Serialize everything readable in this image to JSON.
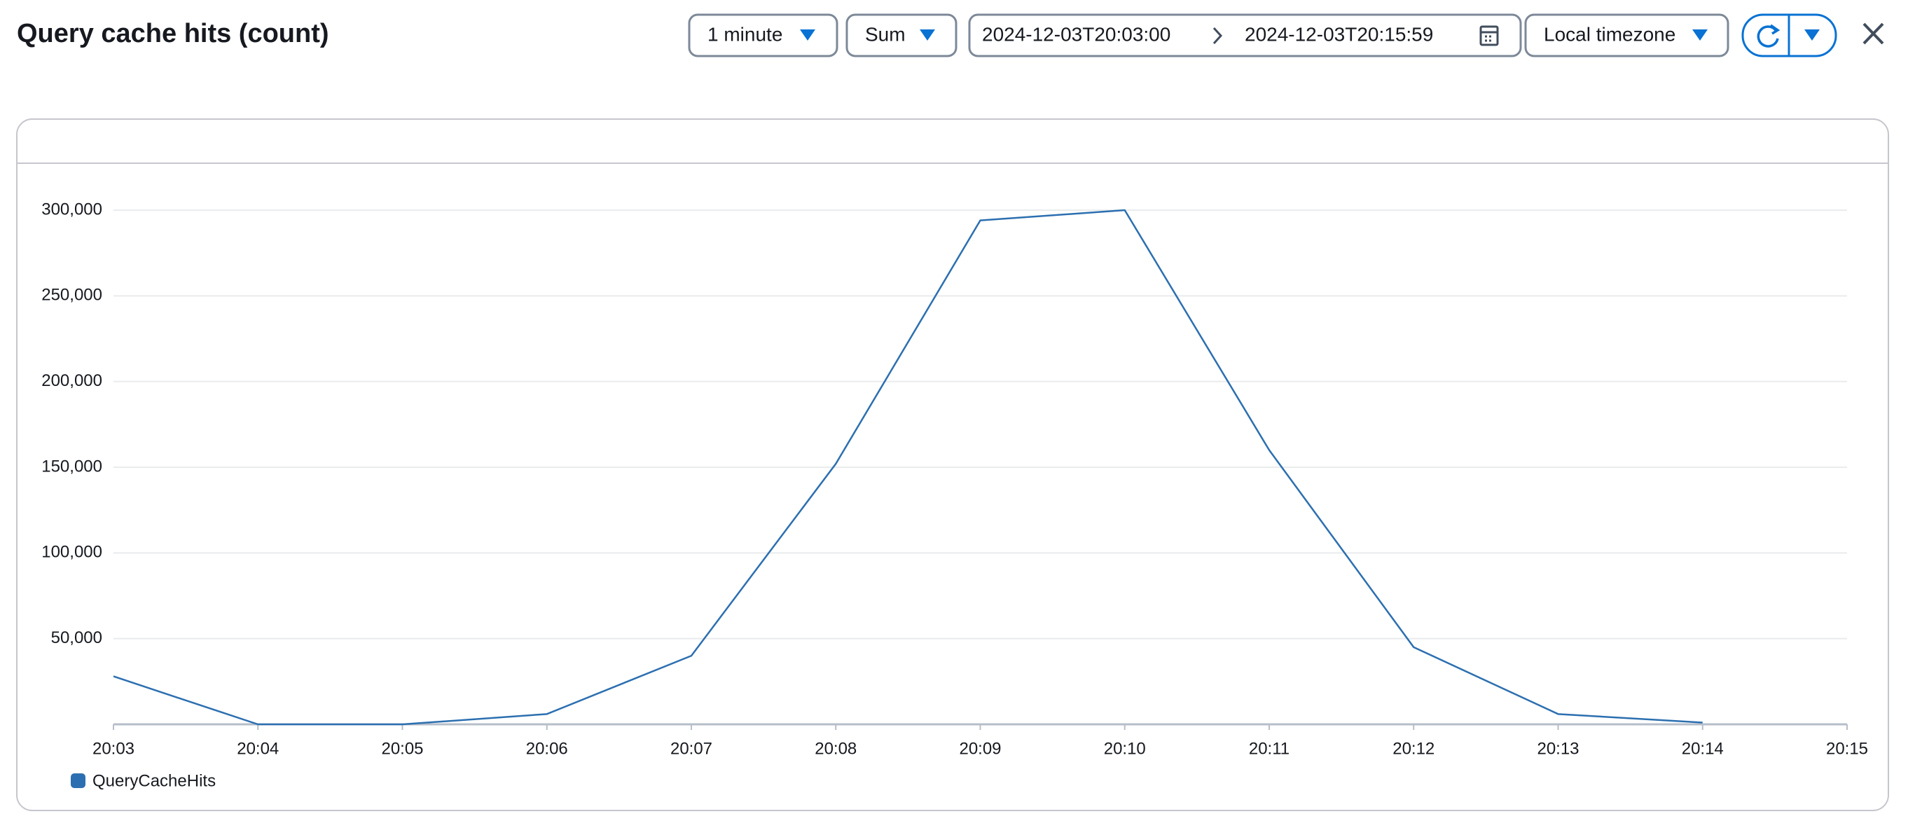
{
  "header": {
    "title": "Query cache hits (count)"
  },
  "controls": {
    "period": "1 minute",
    "statistic": "Sum",
    "start": "2024-12-03T20:03:00",
    "end": "2024-12-03T20:15:59",
    "timezone": "Local timezone"
  },
  "chart_data": {
    "type": "line",
    "categories": [
      "20:03",
      "20:04",
      "20:05",
      "20:06",
      "20:07",
      "20:08",
      "20:09",
      "20:10",
      "20:11",
      "20:12",
      "20:13",
      "20:14",
      "20:15"
    ],
    "series": [
      {
        "name": "QueryCacheHits",
        "color": "#2c6fb0",
        "values": [
          28000,
          0,
          0,
          6000,
          40000,
          152000,
          294000,
          300000,
          160000,
          45000,
          6000,
          1000,
          null
        ]
      }
    ],
    "ylim": [
      0,
      300000
    ],
    "yticks": [
      {
        "value": 50000,
        "label": "50,000"
      },
      {
        "value": 100000,
        "label": "100,000"
      },
      {
        "value": 150000,
        "label": "150,000"
      },
      {
        "value": 200000,
        "label": "200,000"
      },
      {
        "value": 250000,
        "label": "250,000"
      },
      {
        "value": 300000,
        "label": "300,000"
      }
    ],
    "grid": true
  }
}
